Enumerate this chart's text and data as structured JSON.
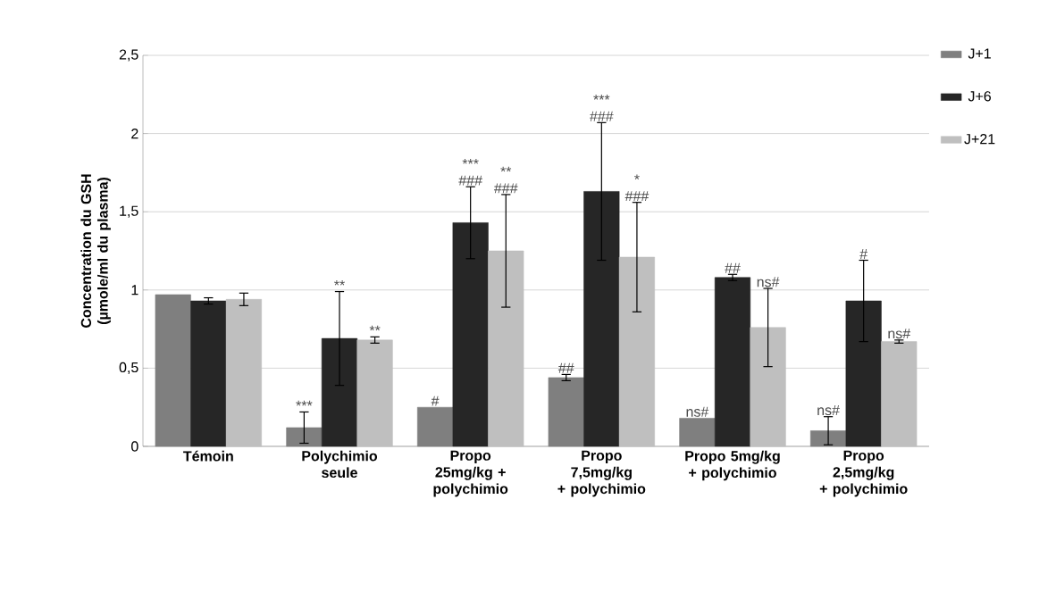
{
  "chart_data": {
    "type": "bar",
    "ylabel": "Concentration du GSH (µmole/ml du plasma)",
    "categories": [
      "Témoin",
      "Polychimio seule",
      "Propo 25mg/kg + polychimio",
      "Propo 7,5mg/kg + polychimio",
      "Propo 5mg/kg + polychimio",
      "Propo 2,5mg/kg + polychimio"
    ],
    "series": [
      {
        "name": "J+1",
        "color": "#7f7f7f",
        "values": [
          0.97,
          0.12,
          0.25,
          0.44,
          0.18,
          0.1
        ],
        "errors": [
          null,
          0.1,
          null,
          0.02,
          null,
          0.09
        ],
        "value_labels": [
          null,
          "***",
          "#",
          "##",
          "ns#",
          "ns#"
        ]
      },
      {
        "name": "J+6",
        "color": "#262626",
        "values": [
          0.93,
          0.69,
          1.43,
          1.63,
          1.08,
          0.93
        ],
        "errors": [
          0.02,
          0.3,
          0.23,
          0.44,
          0.02,
          0.26
        ],
        "value_labels": [
          null,
          null,
          "*** ###",
          null,
          "##",
          "#"
        ]
      },
      {
        "name": "J+21",
        "color": "#bfbfbf",
        "values": [
          0.94,
          0.68,
          1.25,
          1.21,
          0.76,
          0.67
        ],
        "errors": [
          0.04,
          0.02,
          0.36,
          0.35,
          0.25,
          0.01
        ],
        "value_labels": [
          null,
          "**",
          null,
          null,
          "ns#",
          "ns#"
        ]
      }
    ],
    "annotations": [
      {
        "text": "**",
        "x": "Polychimio seule",
        "y": 0.99
      },
      {
        "text": "** ###",
        "x": "Propo 25mg/kg + polychimio",
        "y": 1.61
      },
      {
        "text": "*** ###",
        "x": "Propo 7,5mg/kg + polychimio",
        "y": 2.07
      },
      {
        "text": "* ###",
        "x": "Propo 7,5mg/kg + polychimio",
        "y": 1.56
      }
    ],
    "ylim": [
      0,
      2.5
    ],
    "yticks": [
      0,
      {
        "value": 0.5,
        "label": "0,5"
      },
      1,
      {
        "value": 1.5,
        "label": "1,5"
      },
      2,
      {
        "value": 2.5,
        "label": "2,5"
      }
    ],
    "grid": "y",
    "legend": "top right"
  }
}
